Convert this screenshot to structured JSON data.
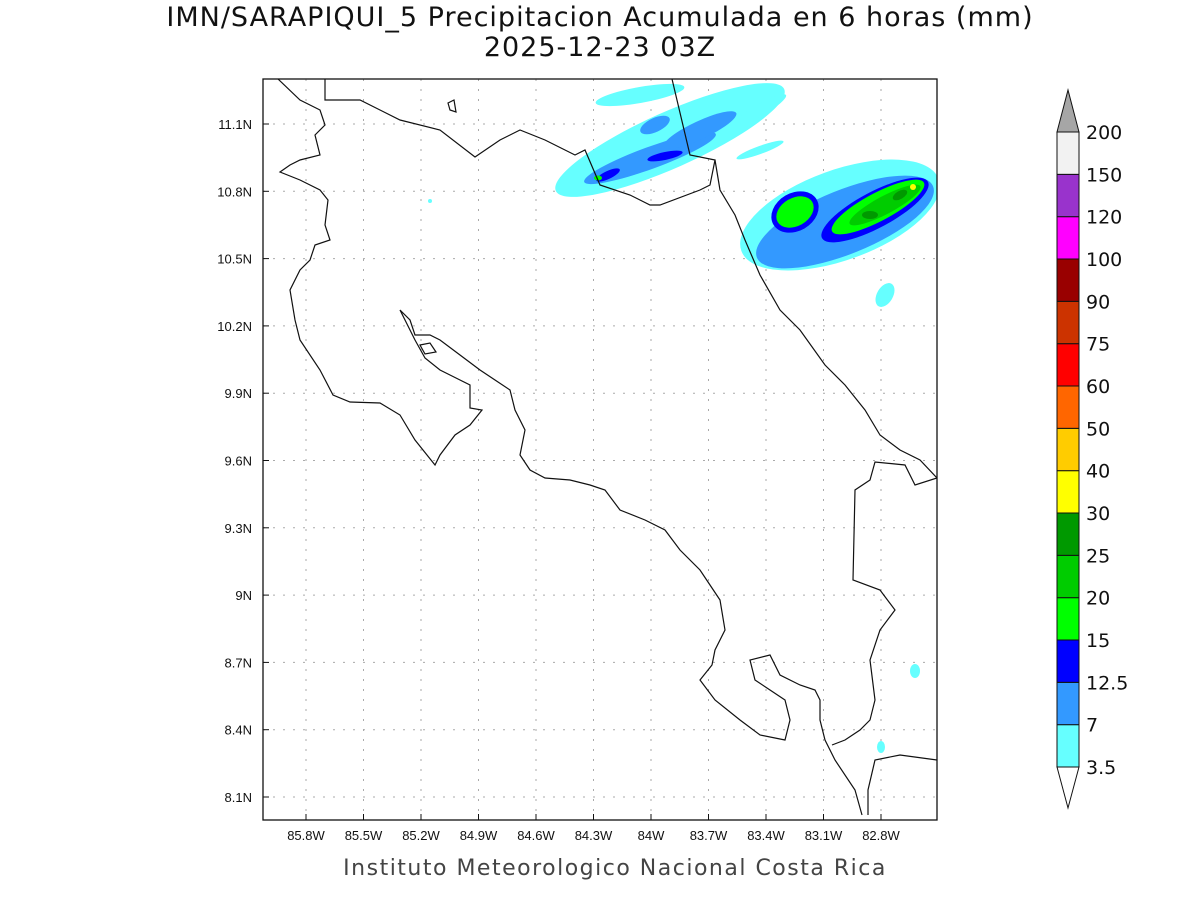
{
  "title": "IMN/SARAPIQUI_5 Precipitacion Acumulada en 6 horas (mm)",
  "subtitle": "2025-12-23 03Z",
  "footer": "Instituto Meteorologico Nacional Costa Rica",
  "chart_data": {
    "type": "heatmap",
    "variable": "6-hour accumulated precipitation (mm)",
    "x_ticks": [
      "85.8W",
      "85.5W",
      "85.2W",
      "84.9W",
      "84.6W",
      "84.3W",
      "84W",
      "83.7W",
      "83.4W",
      "83.1W",
      "82.8W"
    ],
    "y_ticks": [
      "11.1N",
      "10.8N",
      "10.5N",
      "10.2N",
      "9.9N",
      "9.6N",
      "9.3N",
      "9N",
      "8.7N",
      "8.4N",
      "8.1N"
    ],
    "xlim": [
      85.99,
      82.53
    ],
    "ylim": [
      8.0,
      11.3
    ],
    "grid": true,
    "legend_placement": "right",
    "levels": [
      "3.5",
      "7",
      "12.5",
      "15",
      "20",
      "25",
      "30",
      "40",
      "50",
      "60",
      "75",
      "90",
      "100",
      "120",
      "150",
      "200"
    ],
    "colors": [
      "#66ffff",
      "#3399ff",
      "#0000ff",
      "#00ff00",
      "#00cc00",
      "#009900",
      "#ffff00",
      "#ffcc00",
      "#ff6600",
      "#ff0000",
      "#cc3300",
      "#990000",
      "#ff00ff",
      "#9933cc",
      "#f2f2f2",
      "#a6a6a6"
    ]
  }
}
